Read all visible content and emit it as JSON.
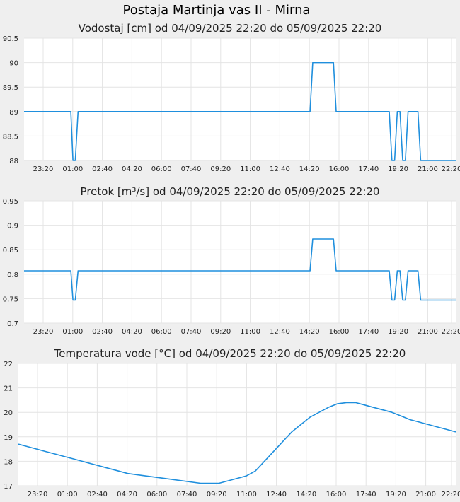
{
  "title": "Postaja Martinja vas II - Mirna",
  "colors": {
    "line": "#1f8fdd",
    "grid": "#e4e4e4",
    "plot_bg": "#ffffff",
    "page_bg": "#efefef"
  },
  "chart_data": [
    {
      "type": "line",
      "title": "Vodostaj [cm] od 04/09/2025 22:20 do 05/09/2025 22:20",
      "x_unit": "hours from 04/09/2025 22:20",
      "xlim": [
        0,
        24
      ],
      "xticks": [
        "23:20",
        "01:00",
        "02:40",
        "04:20",
        "06:00",
        "07:40",
        "09:20",
        "11:00",
        "12:40",
        "14:20",
        "16:00",
        "17:40",
        "19:20",
        "21:00",
        "22:20"
      ],
      "ylim": [
        88,
        90.5
      ],
      "yticks": [
        "88",
        "88.5",
        "89",
        "89.5",
        "90",
        "90.5"
      ],
      "grid": true,
      "series": [
        {
          "x": [
            0,
            2.6,
            2.72,
            2.85,
            3.0,
            15.9,
            16.05,
            17.2,
            17.35,
            20.3,
            20.45,
            20.6,
            20.75,
            20.9,
            21.05,
            21.2,
            21.35,
            21.9,
            22.05,
            24
          ],
          "y": [
            89,
            89,
            88,
            88,
            89,
            89,
            90,
            90,
            89,
            89,
            88,
            88,
            89,
            89,
            88,
            88,
            89,
            89,
            88,
            88
          ]
        }
      ]
    },
    {
      "type": "line",
      "title": "Pretok [m³/s] od 04/09/2025 22:20 do 05/09/2025 22:20",
      "x_unit": "hours from 04/09/2025 22:20",
      "xlim": [
        0,
        24
      ],
      "xticks": [
        "23:20",
        "01:00",
        "02:40",
        "04:20",
        "06:00",
        "07:40",
        "09:20",
        "11:00",
        "12:40",
        "14:20",
        "16:00",
        "17:40",
        "19:20",
        "21:00",
        "22:20"
      ],
      "ylim": [
        0.7,
        0.95
      ],
      "yticks": [
        "0.7",
        "0.75",
        "0.8",
        "0.85",
        "0.9",
        "0.95"
      ],
      "grid": true,
      "series": [
        {
          "x": [
            0,
            2.6,
            2.72,
            2.85,
            3.0,
            15.9,
            16.05,
            17.2,
            17.35,
            20.3,
            20.45,
            20.6,
            20.75,
            20.9,
            21.05,
            21.2,
            21.35,
            21.9,
            22.05,
            24
          ],
          "y": [
            0.807,
            0.807,
            0.747,
            0.747,
            0.807,
            0.807,
            0.872,
            0.872,
            0.807,
            0.807,
            0.747,
            0.747,
            0.807,
            0.807,
            0.747,
            0.747,
            0.807,
            0.807,
            0.747,
            0.747
          ]
        }
      ]
    },
    {
      "type": "line",
      "title": "Temperatura vode [°C] od 04/09/2025 22:20 do 05/09/2025 22:20",
      "x_unit": "hours from 04/09/2025 22:20",
      "xlim": [
        0,
        24
      ],
      "xticks": [
        "23:20",
        "01:00",
        "02:40",
        "04:20",
        "06:00",
        "07:40",
        "09:20",
        "11:00",
        "12:40",
        "14:20",
        "16:00",
        "17:40",
        "19:20",
        "21:00",
        "22:20"
      ],
      "ylim": [
        17,
        22
      ],
      "yticks": [
        "17",
        "18",
        "19",
        "20",
        "21",
        "22"
      ],
      "grid": true,
      "series": [
        {
          "x": [
            0,
            0.5,
            1.0,
            1.5,
            2.0,
            2.5,
            3.0,
            3.5,
            4.0,
            4.5,
            5.0,
            5.5,
            6.0,
            6.5,
            7.0,
            8.0,
            9.0,
            10.0,
            11.0,
            11.5,
            12.0,
            12.5,
            13.0,
            13.5,
            14.0,
            14.5,
            15.0,
            15.5,
            16.0,
            16.5,
            17.0,
            17.5,
            18.0,
            18.5,
            19.0,
            19.5,
            20.0,
            20.5,
            21.0,
            21.5,
            22.0,
            22.5,
            23.0,
            23.5,
            24.0
          ],
          "y": [
            18.7,
            18.6,
            18.5,
            18.4,
            18.3,
            18.2,
            18.1,
            18.0,
            17.9,
            17.8,
            17.7,
            17.6,
            17.5,
            17.45,
            17.4,
            17.3,
            17.2,
            17.1,
            17.1,
            17.2,
            17.3,
            17.4,
            17.6,
            18.0,
            18.4,
            18.8,
            19.2,
            19.5,
            19.8,
            20.0,
            20.2,
            20.35,
            20.4,
            20.4,
            20.3,
            20.2,
            20.1,
            20.0,
            19.85,
            19.7,
            19.6,
            19.5,
            19.4,
            19.3,
            19.2
          ]
        }
      ]
    }
  ]
}
